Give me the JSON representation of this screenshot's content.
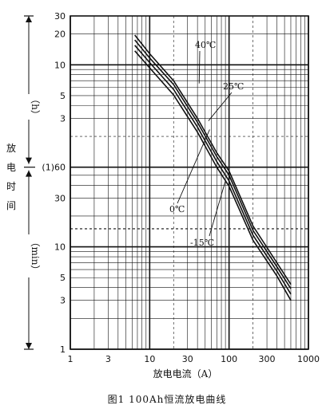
{
  "caption": "图1   100Ah恒流放电曲线",
  "chart_data": {
    "type": "line",
    "x_scale": "log",
    "y_scale": "log",
    "xlim": [
      1,
      1000
    ],
    "xlabel": "放电电流（A）",
    "ylabel_chars": [
      "放",
      "电",
      "时",
      "间"
    ],
    "y_unit_hours": "（h）",
    "y_unit_minutes": "（min）",
    "x_tick_labels": [
      "1",
      "3",
      "10",
      "30",
      "100",
      "300",
      "1000"
    ],
    "hour_tick_labels": [
      "30",
      "20",
      "10",
      "5",
      "3"
    ],
    "minute_tick_labels": [
      "(1)60",
      "30",
      "10",
      "5",
      "3",
      "1"
    ],
    "series": [
      {
        "name": "40℃",
        "points": [
          [
            6.5,
            1170
          ],
          [
            10,
            770
          ],
          [
            20,
            420
          ],
          [
            40,
            180
          ],
          [
            70,
            83
          ],
          [
            100,
            55
          ],
          [
            200,
            16
          ],
          [
            400,
            7
          ],
          [
            600,
            4.3
          ]
        ]
      },
      {
        "name": "25℃",
        "points": [
          [
            6.5,
            1050
          ],
          [
            10,
            700
          ],
          [
            20,
            385
          ],
          [
            40,
            165
          ],
          [
            70,
            76
          ],
          [
            100,
            50
          ],
          [
            200,
            14.5
          ],
          [
            400,
            6.4
          ],
          [
            600,
            3.9
          ]
        ]
      },
      {
        "name": "0℃",
        "points": [
          [
            6.5,
            930
          ],
          [
            10,
            630
          ],
          [
            20,
            345
          ],
          [
            40,
            148
          ],
          [
            70,
            68
          ],
          [
            100,
            44
          ],
          [
            200,
            13
          ],
          [
            400,
            5.8
          ],
          [
            600,
            3.45
          ]
        ]
      },
      {
        "name": "-15℃",
        "points": [
          [
            6.5,
            820
          ],
          [
            10,
            560
          ],
          [
            20,
            305
          ],
          [
            40,
            132
          ],
          [
            70,
            60
          ],
          [
            100,
            39
          ],
          [
            200,
            11.6
          ],
          [
            400,
            5.2
          ],
          [
            600,
            3.0
          ]
        ]
      }
    ]
  }
}
